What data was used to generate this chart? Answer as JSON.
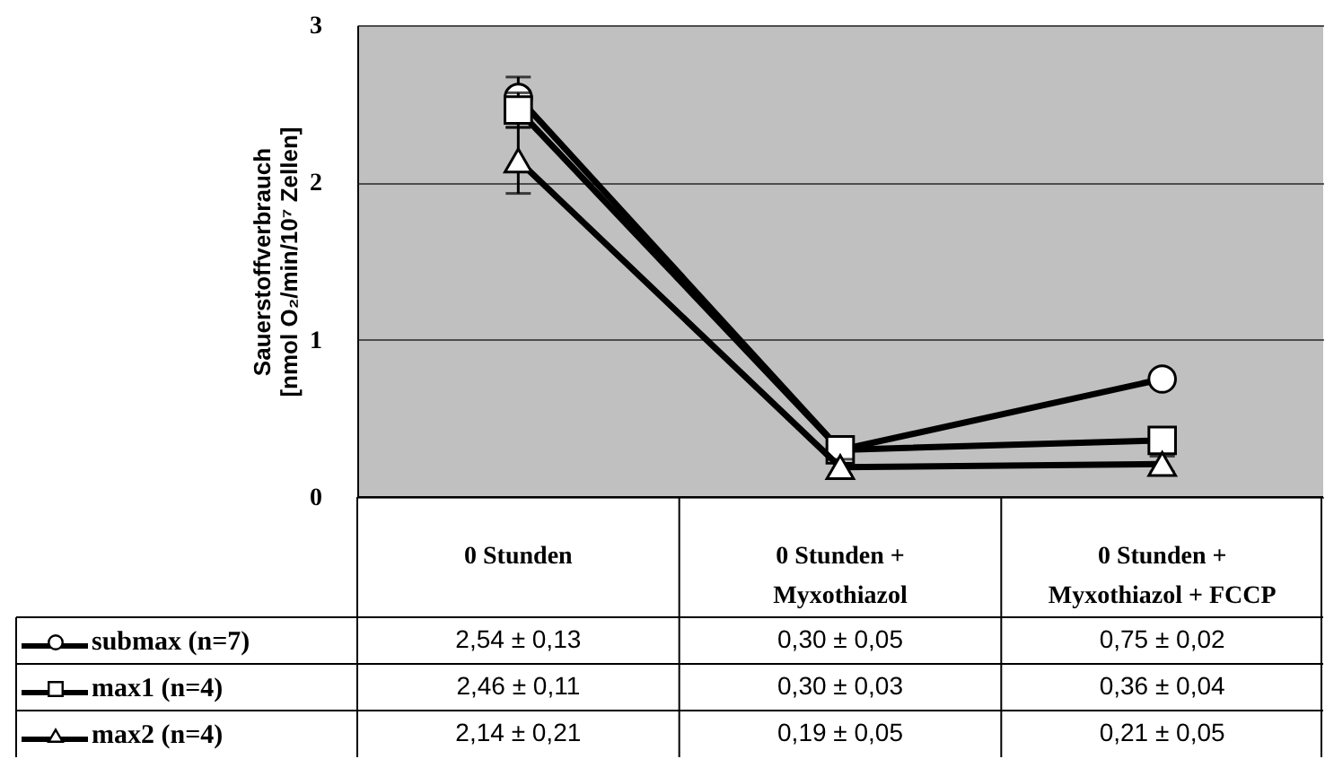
{
  "chart_data": {
    "type": "line",
    "ylabel": "Sauerstoffverbrauch\n[nmol O₂/min/10⁷ Zellen]",
    "categories": [
      "0 Stunden",
      "0 Stunden + Myxothiazol",
      "0 Stunden + Myxothiazol + FCCP"
    ],
    "ylim": [
      0,
      3
    ],
    "yticks": [
      0,
      1,
      2,
      3
    ],
    "grid": "y",
    "legend": "bottom",
    "series": [
      {
        "name": "submax (n=7)",
        "color": "#000000",
        "marker": "circle",
        "values": [
          2.54,
          0.3,
          0.75
        ],
        "errors": [
          0.13,
          0.05,
          null
        ],
        "value_labels": [
          "2,54 ± 0,13",
          "0,30 ± 0,05",
          "0,75 ± 0,02"
        ]
      },
      {
        "name": "max1 (n=4)",
        "color": "#000000",
        "marker": "square",
        "values": [
          2.46,
          0.3,
          0.36
        ],
        "errors": [
          0.11,
          0.03,
          null
        ],
        "value_labels": [
          "2,46 ± 0,11",
          "0,30 ± 0,03",
          "0,36 ± 0,04"
        ]
      },
      {
        "name": "max2  (n=4)",
        "color": "#000000",
        "marker": "triangle",
        "values": [
          2.14,
          0.19,
          0.21
        ],
        "errors": [
          0.21,
          0.05,
          0.05
        ],
        "value_labels": [
          "2,14 ± 0,21",
          "0,19 ± 0,05",
          "0,21 ± 0,05"
        ]
      }
    ]
  }
}
